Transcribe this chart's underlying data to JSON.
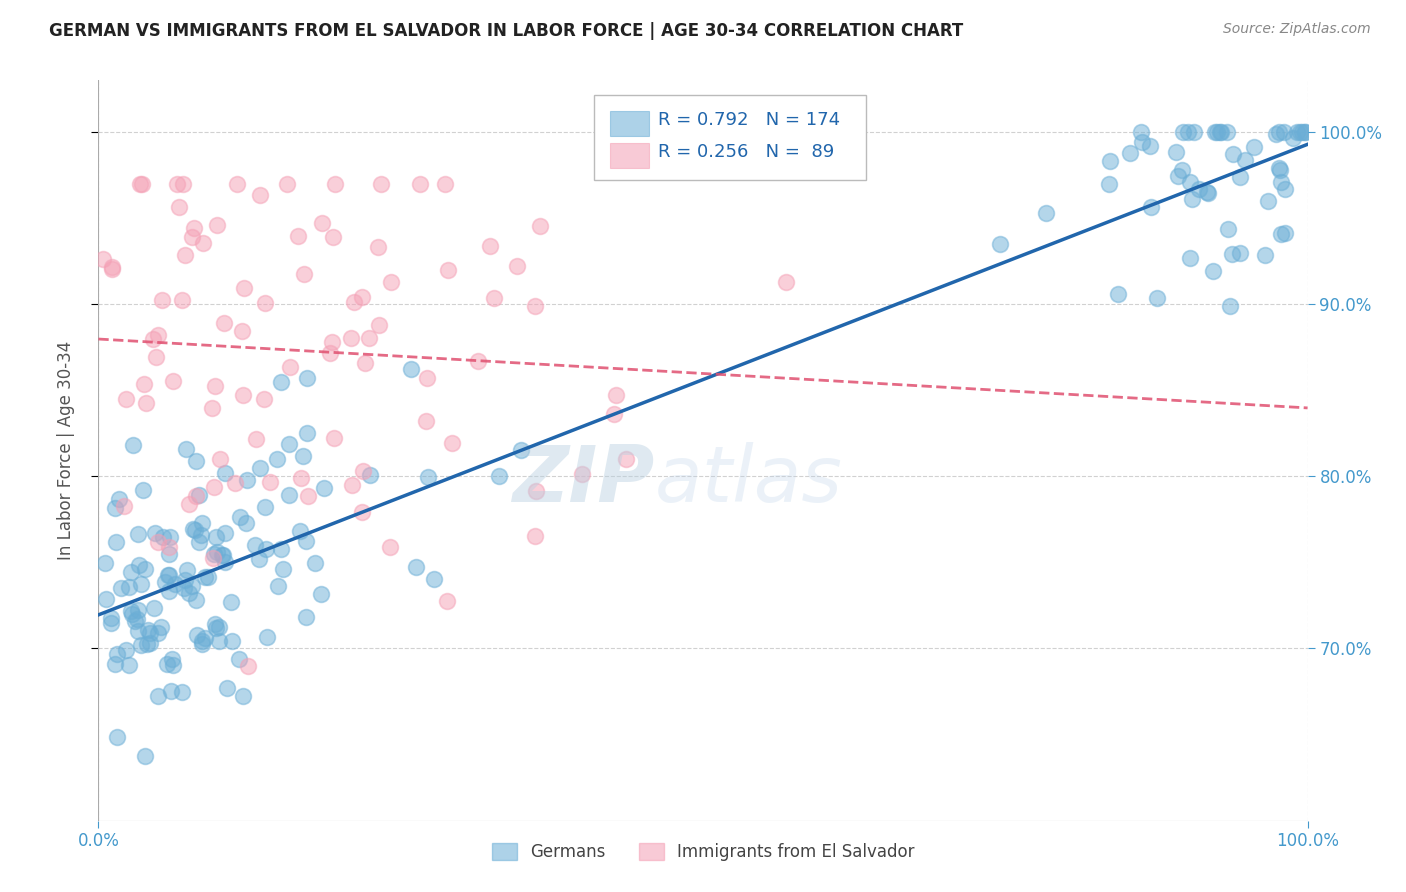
{
  "title": "GERMAN VS IMMIGRANTS FROM EL SALVADOR IN LABOR FORCE | AGE 30-34 CORRELATION CHART",
  "source": "Source: ZipAtlas.com",
  "ylabel": "In Labor Force | Age 30-34",
  "x_min": 0.0,
  "x_max": 1.0,
  "y_min": 0.6,
  "y_max": 1.03,
  "y_tick_labels": [
    "70.0%",
    "80.0%",
    "90.0%",
    "100.0%"
  ],
  "y_tick_values": [
    0.7,
    0.8,
    0.9,
    1.0
  ],
  "legend_r1": "R = 0.792",
  "legend_n1": "N = 174",
  "legend_r2": "R = 0.256",
  "legend_n2": "N =  89",
  "blue_color": "#6baed6",
  "pink_color": "#f4a0b5",
  "blue_line_color": "#2166ac",
  "pink_line_color": "#e05070",
  "pink_line_style": "--",
  "title_color": "#222222",
  "axis_label_color": "#555555",
  "tick_color": "#4499cc",
  "grid_color": "#cccccc",
  "background_color": "#ffffff",
  "legend_label1": "Germans",
  "legend_label2": "Immigrants from El Salvador"
}
